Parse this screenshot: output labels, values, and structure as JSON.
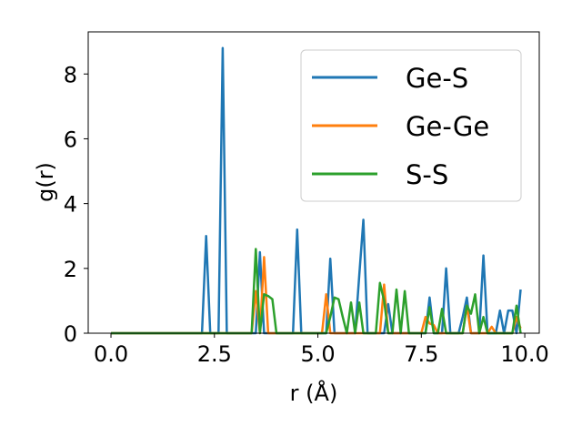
{
  "chart_data": {
    "type": "line",
    "title": "",
    "xlabel": "r (Å)",
    "ylabel": "g(r)",
    "xlim": [
      -0.55,
      10.35
    ],
    "ylim": [
      0,
      9.3
    ],
    "xticks": [
      0.0,
      2.5,
      5.0,
      7.5,
      10.0
    ],
    "xtick_labels": [
      "0.0",
      "2.5",
      "5.0",
      "7.5",
      "10.0"
    ],
    "yticks": [
      0,
      2,
      4,
      6,
      8
    ],
    "ytick_labels": [
      "0",
      "2",
      "4",
      "6",
      "8"
    ],
    "grid": false,
    "legend_position": "top-right",
    "series": [
      {
        "name": "Ge-S",
        "color": "#1f77b4",
        "points": [
          [
            0,
            0
          ],
          [
            2.2,
            0
          ],
          [
            2.3,
            3.0
          ],
          [
            2.4,
            0
          ],
          [
            2.6,
            0
          ],
          [
            2.7,
            8.8
          ],
          [
            2.8,
            0
          ],
          [
            3.5,
            0
          ],
          [
            3.6,
            2.5
          ],
          [
            3.7,
            0
          ],
          [
            4.4,
            0
          ],
          [
            4.5,
            3.2
          ],
          [
            4.6,
            0
          ],
          [
            5.2,
            0
          ],
          [
            5.3,
            2.3
          ],
          [
            5.4,
            0
          ],
          [
            5.9,
            0
          ],
          [
            6.0,
            1.8
          ],
          [
            6.1,
            3.5
          ],
          [
            6.2,
            0
          ],
          [
            6.6,
            0
          ],
          [
            6.7,
            0.9
          ],
          [
            6.8,
            0
          ],
          [
            7.6,
            0
          ],
          [
            7.7,
            1.1
          ],
          [
            7.8,
            0
          ],
          [
            8.0,
            0
          ],
          [
            8.1,
            2.0
          ],
          [
            8.2,
            0
          ],
          [
            8.4,
            0
          ],
          [
            8.5,
            0.5
          ],
          [
            8.6,
            1.1
          ],
          [
            8.7,
            0
          ],
          [
            8.9,
            0
          ],
          [
            9.0,
            2.4
          ],
          [
            9.1,
            0
          ],
          [
            9.3,
            0
          ],
          [
            9.4,
            0.7
          ],
          [
            9.5,
            0
          ],
          [
            9.6,
            0.7
          ],
          [
            9.7,
            0.7
          ],
          [
            9.8,
            0
          ],
          [
            9.9,
            1.35
          ]
        ]
      },
      {
        "name": "Ge-Ge",
        "color": "#ff7f0e",
        "points": [
          [
            0,
            0
          ],
          [
            3.4,
            0
          ],
          [
            3.5,
            1.3
          ],
          [
            3.6,
            0
          ],
          [
            3.7,
            2.35
          ],
          [
            3.8,
            0
          ],
          [
            5.1,
            0
          ],
          [
            5.2,
            1.2
          ],
          [
            5.3,
            0
          ],
          [
            6.4,
            0
          ],
          [
            6.5,
            0
          ],
          [
            6.6,
            1.5
          ],
          [
            6.7,
            0
          ],
          [
            7.5,
            0
          ],
          [
            7.6,
            0.5
          ],
          [
            7.7,
            0.3
          ],
          [
            7.8,
            0.25
          ],
          [
            7.9,
            0
          ],
          [
            8.5,
            0
          ],
          [
            8.6,
            0.85
          ],
          [
            8.7,
            0
          ],
          [
            9.1,
            0
          ],
          [
            9.2,
            0.2
          ],
          [
            9.3,
            0
          ],
          [
            9.7,
            0
          ],
          [
            9.8,
            0.5
          ],
          [
            9.9,
            0.15
          ]
        ]
      },
      {
        "name": "S-S",
        "color": "#2ca02c",
        "points": [
          [
            0,
            0
          ],
          [
            3.4,
            0
          ],
          [
            3.5,
            2.6
          ],
          [
            3.6,
            0
          ],
          [
            3.7,
            1.2
          ],
          [
            3.8,
            1.15
          ],
          [
            3.9,
            1.05
          ],
          [
            4.0,
            0
          ],
          [
            5.2,
            0
          ],
          [
            5.3,
            0.5
          ],
          [
            5.4,
            1.1
          ],
          [
            5.5,
            1.05
          ],
          [
            5.6,
            0.5
          ],
          [
            5.7,
            0
          ],
          [
            5.8,
            0.95
          ],
          [
            5.9,
            0
          ],
          [
            6.0,
            0.95
          ],
          [
            6.1,
            0
          ],
          [
            6.4,
            0
          ],
          [
            6.5,
            1.55
          ],
          [
            6.6,
            1.0
          ],
          [
            6.7,
            0
          ],
          [
            6.8,
            0
          ],
          [
            6.9,
            1.35
          ],
          [
            7.0,
            0
          ],
          [
            7.1,
            1.3
          ],
          [
            7.2,
            0
          ],
          [
            7.6,
            0
          ],
          [
            7.7,
            0.8
          ],
          [
            7.8,
            0
          ],
          [
            7.9,
            0
          ],
          [
            8.0,
            0.75
          ],
          [
            8.1,
            0
          ],
          [
            8.5,
            0
          ],
          [
            8.6,
            0.85
          ],
          [
            8.7,
            0.6
          ],
          [
            8.8,
            1.2
          ],
          [
            8.9,
            0
          ],
          [
            9.0,
            0.5
          ],
          [
            9.1,
            0
          ],
          [
            9.7,
            0
          ],
          [
            9.8,
            0.85
          ],
          [
            9.9,
            0
          ]
        ]
      }
    ]
  }
}
